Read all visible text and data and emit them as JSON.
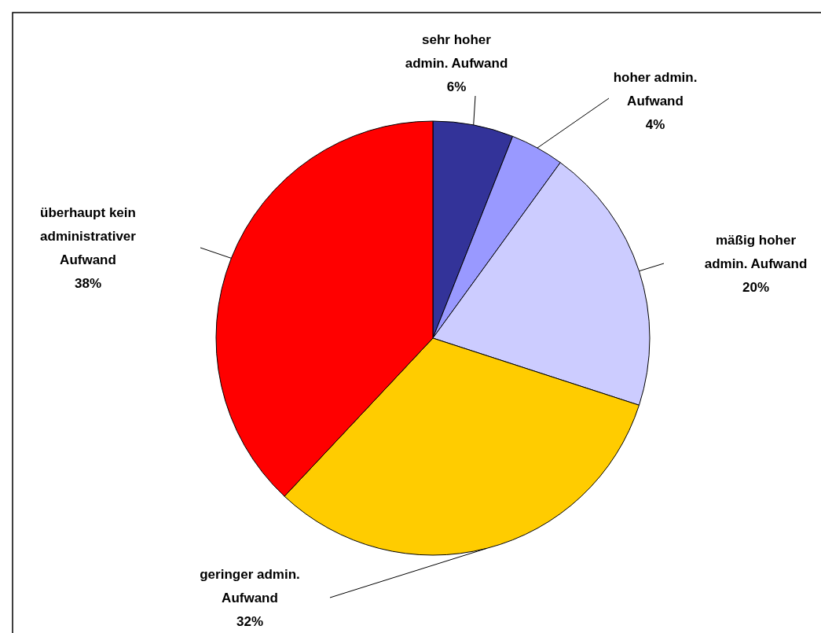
{
  "chart_data": {
    "type": "pie",
    "categories": [
      "sehr hoher admin. Aufwand",
      "hoher admin. Aufwand",
      "mäßig hoher admin. Aufwand",
      "geringer admin. Aufwand",
      "überhaupt kein administrativer Aufwand"
    ],
    "values": [
      6,
      4,
      20,
      32,
      38
    ],
    "value_labels": [
      "6%",
      "4%",
      "20%",
      "32%",
      "38%"
    ],
    "colors": [
      "#333399",
      "#9999ff",
      "#ccccff",
      "#ffcc00",
      "#ff0000"
    ]
  }
}
